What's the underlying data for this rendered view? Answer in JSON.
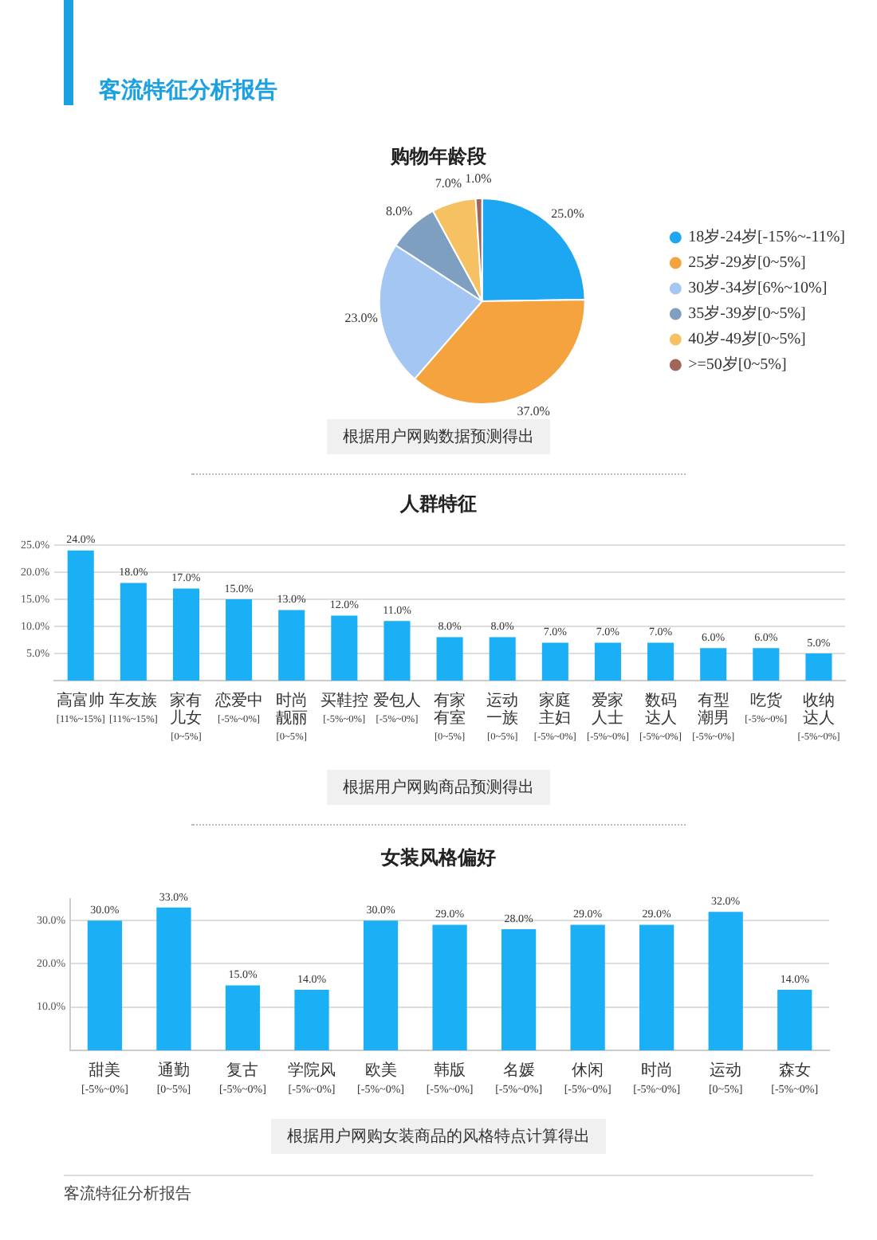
{
  "chart_data": [
    {
      "type": "pie",
      "title": "购物年龄段",
      "categories": [
        "18岁-24岁[-15%~-11%]",
        "25岁-29岁[0~5%]",
        "30岁-34岁[6%~10%]",
        "35岁-39岁[0~5%]",
        "40岁-49岁[0~5%]",
        ">=50岁[0~5%]"
      ],
      "values": [
        25,
        37,
        23,
        8,
        7,
        1
      ],
      "colors": [
        "#1da7f3",
        "#f5a33e",
        "#a3c6f2",
        "#7f9fc0",
        "#f6c163",
        "#a0665a"
      ],
      "value_labels": [
        "25.0%",
        "37.0%",
        "23.0%",
        "8.0%",
        "7.0%",
        "1.0%"
      ],
      "legend": "right",
      "annotations": [
        "客流特征分析报告",
        "根据用户网购数据预测得出"
      ]
    },
    {
      "type": "bar",
      "title": "人群特征",
      "categories": [
        "高富帅\n[11%~15%]",
        "车友族\n[11%~15%]",
        "家有儿女\n[0~5%]",
        "恋爱中\n[-5%~0%]",
        "时尚靓丽\n[0~5%]",
        "买鞋控\n[-5%~0%]",
        "爱包人\n[-5%~0%]",
        "有家有室\n[0~5%]",
        "运动一族\n[0~5%]",
        "家庭主妇\n[-5%~0%]",
        "爱家人士\n[-5%~0%]",
        "数码达人\n[-5%~0%]",
        "有型潮男\n[-5%~0%]",
        "吃货\n[-5%~0%]",
        "收纳达人\n[-5%~0%]"
      ],
      "values": [
        24,
        18,
        17,
        15,
        13,
        12,
        11,
        8,
        8,
        7,
        7,
        7,
        6,
        6,
        5
      ],
      "color": "#1bb0f5",
      "value_labels": [
        "24.0%",
        "18.0%",
        "17.0%",
        "15.0%",
        "13.0%",
        "12.0%",
        "11.0%",
        "8.0%",
        "8.0%",
        "7.0%",
        "7.0%",
        "7.0%",
        "6.0%",
        "6.0%",
        "5.0%"
      ],
      "ylim": [
        0,
        25
      ],
      "yticks": [
        {
          "value": 5,
          "label": "5.0%"
        },
        {
          "value": 10,
          "label": "10.0%"
        },
        {
          "value": 15,
          "label": "15.0%"
        },
        {
          "value": 20,
          "label": "20.0%"
        },
        {
          "value": 25,
          "label": "25.0%"
        }
      ],
      "grid": "y",
      "annotations": [
        "根据用户网购商品预测得出"
      ]
    },
    {
      "type": "bar",
      "title": "女装风格偏好",
      "categories": [
        "甜美\n[-5%~0%]",
        "通勤\n[0~5%]",
        "复古\n[-5%~0%]",
        "学院风\n[-5%~0%]",
        "欧美\n[-5%~0%]",
        "韩版\n[-5%~0%]",
        "名媛\n[-5%~0%]",
        "休闲\n[-5%~0%]",
        "时尚\n[-5%~0%]",
        "运动\n[0~5%]",
        "森女\n[-5%~0%]"
      ],
      "values": [
        30,
        33,
        15,
        14,
        30,
        29,
        28,
        29,
        29,
        32,
        14
      ],
      "color": "#1bb0f5",
      "value_labels": [
        "30.0%",
        "33.0%",
        "15.0%",
        "14.0%",
        "30.0%",
        "29.0%",
        "28.0%",
        "29.0%",
        "29.0%",
        "32.0%",
        "14.0%"
      ],
      "ylim": [
        0,
        35
      ],
      "yticks": [
        {
          "value": 10,
          "label": "10.0%"
        },
        {
          "value": 20,
          "label": "20.0%"
        },
        {
          "value": 30,
          "label": "30.0%"
        }
      ],
      "grid": "y",
      "annotations": [
        "根据用户网购女装商品的风格特点计算得出",
        "客流特征分析报告"
      ]
    }
  ]
}
